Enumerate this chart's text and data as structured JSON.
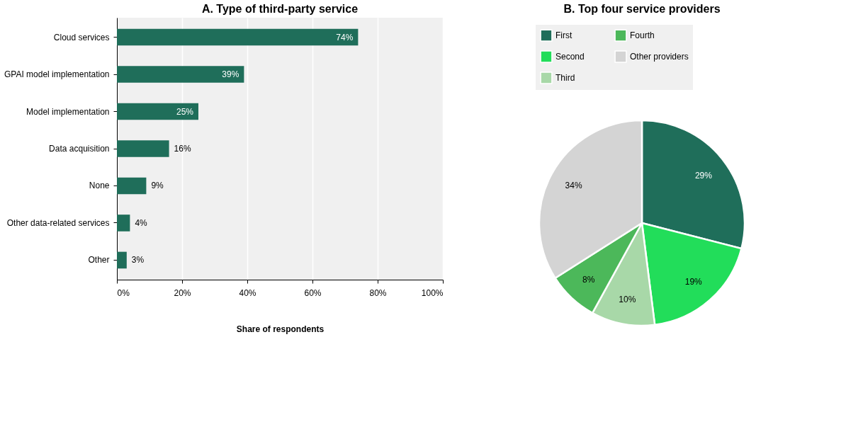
{
  "chart_data": [
    {
      "type": "bar",
      "orientation": "horizontal",
      "title": "A. Type of third-party service",
      "xlabel": "Share of respondents",
      "categories": [
        "Cloud services",
        "GPAI model implementation",
        "Model implementation",
        "Data acquisition",
        "None",
        "Other data-related services",
        "Other"
      ],
      "values": [
        74,
        39,
        25,
        16,
        9,
        4,
        3
      ],
      "value_labels": [
        "74%",
        "39%",
        "25%",
        "16%",
        "9%",
        "4%",
        "3%"
      ],
      "color": "#1f6e5a",
      "xlim": [
        0,
        100
      ],
      "xticks": [
        {
          "value": 0,
          "label": "0%"
        },
        {
          "value": 20,
          "label": "20%"
        },
        {
          "value": 40,
          "label": "40%"
        },
        {
          "value": 60,
          "label": "60%"
        },
        {
          "value": 80,
          "label": "80%"
        },
        {
          "value": 100,
          "label": "100%"
        }
      ],
      "grid": "x"
    },
    {
      "type": "pie",
      "title": "B. Top four service providers",
      "categories": [
        "First",
        "Second",
        "Third",
        "Fourth",
        "Other providers"
      ],
      "values": [
        29,
        19,
        10,
        8,
        34
      ],
      "value_labels": [
        "29%",
        "19%",
        "10%",
        "8%",
        "34%"
      ],
      "colors": [
        "#1f6e5a",
        "#22dd5a",
        "#a8d8a8",
        "#4cb85a",
        "#d4d4d4"
      ],
      "legend": "top"
    }
  ]
}
